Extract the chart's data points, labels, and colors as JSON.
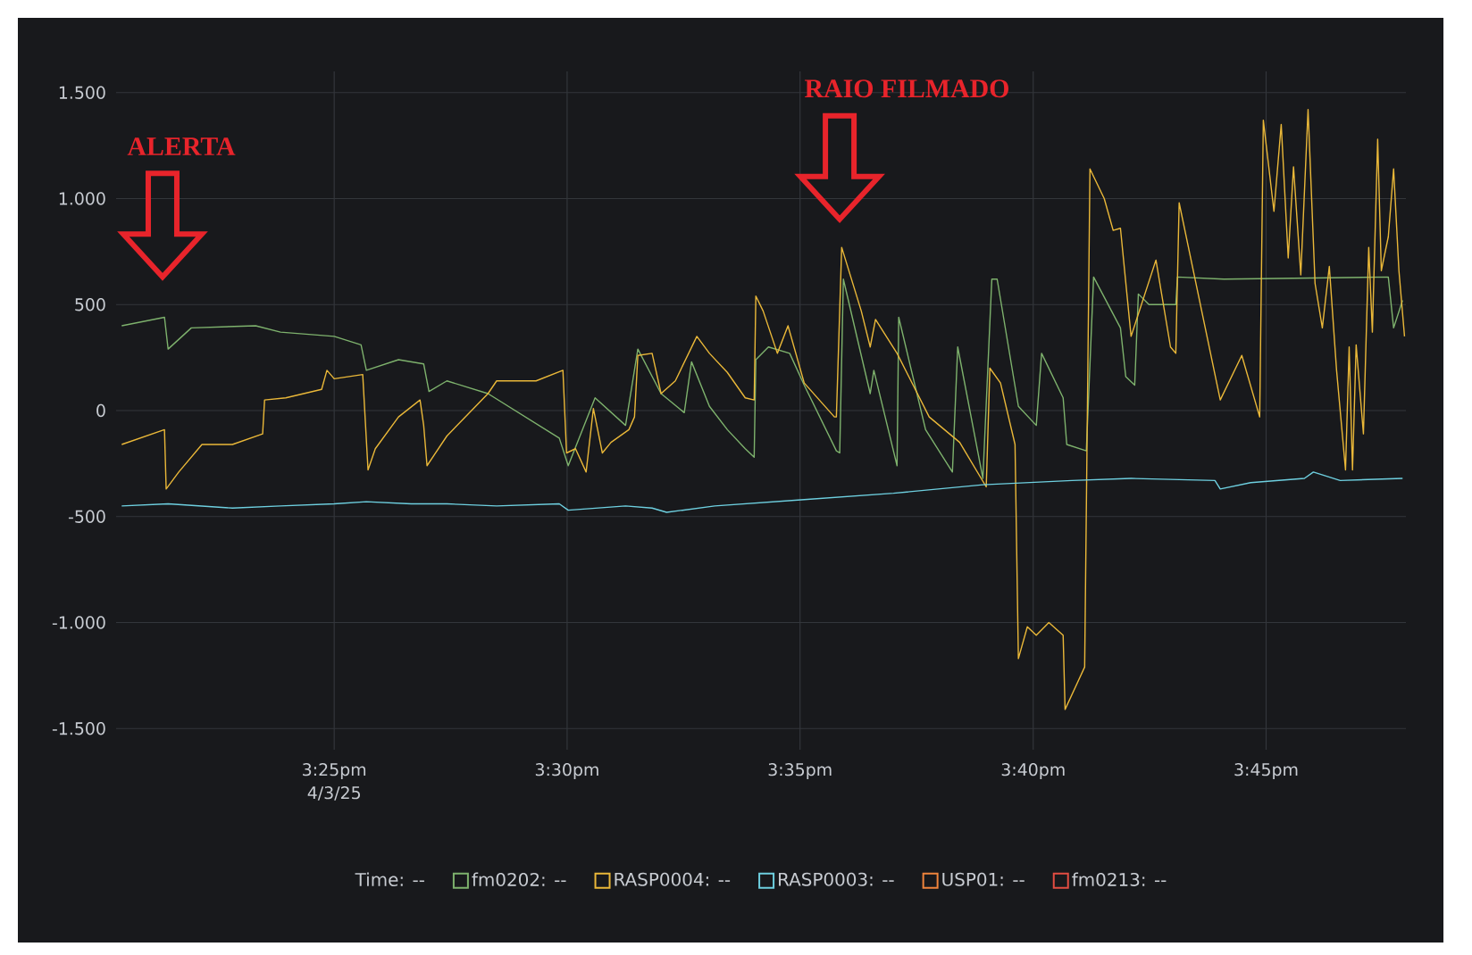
{
  "chart_data": {
    "type": "line",
    "annotations": [
      "ALERTA",
      "RAIO FILMADO"
    ],
    "xlabel": "4/3/25",
    "legend_title": "Time: --",
    "xlim": [
      15.3387,
      15.8
    ],
    "ylim": [
      -1600,
      1600
    ],
    "xticks": [
      {
        "value": 15.4167,
        "label": "3:25pm"
      },
      {
        "value": 15.5,
        "label": "3:30pm"
      },
      {
        "value": 15.5833,
        "label": "3:35pm"
      },
      {
        "value": 15.6667,
        "label": "3:40pm"
      },
      {
        "value": 15.75,
        "label": "3:45pm"
      }
    ],
    "yticks": [
      {
        "value": -1500,
        "label": "-1.500"
      },
      {
        "value": -1000,
        "label": "-1.000"
      },
      -500,
      0,
      500,
      {
        "value": 1000,
        "label": "1.000"
      },
      {
        "value": 1500,
        "label": "1.500"
      }
    ],
    "grid": true,
    "legend": "bottom",
    "series": [
      {
        "name": "fm0202: --",
        "color": "#7eb26d",
        "x": [
          15.3407,
          15.356,
          15.3573,
          15.3656,
          15.3886,
          15.3975,
          15.4167,
          15.4263,
          15.4282,
          15.4397,
          15.4487,
          15.4506,
          15.457,
          15.4717,
          15.4972,
          15.5004,
          15.51,
          15.5209,
          15.5253,
          15.5336,
          15.5419,
          15.5445,
          15.5509,
          15.5573,
          15.5637,
          15.5669,
          15.5675,
          15.572,
          15.5796,
          15.5848,
          15.5963,
          15.5975,
          15.5988,
          15.6084,
          15.6097,
          15.618,
          15.6186,
          15.6282,
          15.6378,
          15.6397,
          15.6487,
          15.6519,
          15.6538,
          15.6614,
          15.6678,
          15.6697,
          15.6774,
          15.6787,
          15.6857,
          15.6883,
          15.6979,
          15.6998,
          15.703,
          15.7043,
          15.7081,
          15.7177,
          15.7183,
          15.7349,
          15.7937,
          15.7956,
          15.7988
        ],
        "values": [
          400,
          440,
          290,
          390,
          400,
          370,
          350,
          310,
          190,
          240,
          220,
          90,
          140,
          80,
          -130,
          -260,
          60,
          -70,
          290,
          80,
          -10,
          230,
          20,
          -90,
          -180,
          -220,
          240,
          300,
          270,
          120,
          -190,
          -200,
          620,
          80,
          190,
          -260,
          440,
          -90,
          -290,
          300,
          -320,
          620,
          620,
          20,
          -70,
          270,
          60,
          -160,
          -190,
          630,
          390,
          160,
          120,
          550,
          500,
          500,
          630,
          620,
          630,
          390,
          520
        ]
      },
      {
        "name": "RASP0004: --",
        "color": "#eab839",
        "x": [
          15.3407,
          15.356,
          15.3566,
          15.3611,
          15.3694,
          15.3803,
          15.3911,
          15.3918,
          15.3994,
          15.4122,
          15.4141,
          15.4167,
          15.4269,
          15.4288,
          15.4314,
          15.4397,
          15.4474,
          15.4487,
          15.4499,
          15.457,
          15.4717,
          15.4748,
          15.4889,
          15.4985,
          15.4998,
          15.503,
          15.5068,
          15.5094,
          15.5126,
          15.5157,
          15.5221,
          15.5241,
          15.5253,
          15.5304,
          15.5336,
          15.5387,
          15.5464,
          15.5509,
          15.5573,
          15.5637,
          15.5669,
          15.5675,
          15.5701,
          15.5752,
          15.579,
          15.5848,
          15.5956,
          15.5963,
          15.5982,
          15.6052,
          15.6084,
          15.6103,
          15.618,
          15.6295,
          15.6404,
          15.6499,
          15.6512,
          15.655,
          15.6602,
          15.6614,
          15.6646,
          15.6678,
          15.6723,
          15.6774,
          15.6781,
          15.6851,
          15.687,
          15.6921,
          15.6953,
          15.6979,
          15.7017,
          15.7106,
          15.7158,
          15.7177,
          15.7189,
          15.7336,
          15.7413,
          15.7477,
          15.749,
          15.7528,
          15.7554,
          15.7579,
          15.7598,
          15.7624,
          15.765,
          15.7675,
          15.7701,
          15.7726,
          15.7752,
          15.7784,
          15.7797,
          15.7809,
          15.7822,
          15.7848,
          15.7867,
          15.788,
          15.7899,
          15.7912,
          15.7937,
          15.7956,
          15.7975,
          15.7995
        ],
        "values": [
          -160,
          -90,
          -370,
          -290,
          -160,
          -160,
          -110,
          50,
          60,
          100,
          190,
          150,
          170,
          -280,
          -180,
          -30,
          50,
          -70,
          -260,
          -120,
          80,
          140,
          140,
          190,
          -200,
          -180,
          -290,
          10,
          -200,
          -150,
          -90,
          -30,
          260,
          270,
          80,
          140,
          350,
          270,
          180,
          60,
          50,
          540,
          470,
          270,
          400,
          130,
          -30,
          -30,
          770,
          470,
          300,
          430,
          270,
          -30,
          -150,
          -360,
          200,
          130,
          -160,
          -1170,
          -1020,
          -1060,
          -1000,
          -1060,
          -1410,
          -1210,
          1140,
          1000,
          850,
          860,
          350,
          710,
          300,
          270,
          980,
          50,
          260,
          -30,
          1370,
          940,
          1350,
          720,
          1150,
          640,
          1420,
          600,
          390,
          680,
          190,
          -280,
          300,
          -280,
          310,
          -110,
          770,
          370,
          1280,
          660,
          820,
          1140,
          660,
          350
        ]
      },
      {
        "name": "RASP0003: --",
        "color": "#6ed0e0",
        "x": [
          15.3407,
          15.3573,
          15.3803,
          15.3975,
          15.4167,
          15.4282,
          15.4442,
          15.457,
          15.4748,
          15.4972,
          15.5004,
          15.5209,
          15.5304,
          15.5356,
          15.5528,
          15.5848,
          15.6167,
          15.6487,
          15.6806,
          15.7017,
          15.7317,
          15.7336,
          15.7445,
          15.7637,
          15.7669,
          15.7765,
          15.7988
        ],
        "values": [
          -450,
          -440,
          -460,
          -450,
          -440,
          -430,
          -440,
          -440,
          -450,
          -440,
          -470,
          -450,
          -460,
          -480,
          -450,
          -420,
          -390,
          -350,
          -330,
          -320,
          -330,
          -370,
          -340,
          -320,
          -290,
          -330,
          -320
        ]
      },
      {
        "name": "USP01: --",
        "color": "#ef843c"
      },
      {
        "name": "fm0213: --",
        "color": "#e24d42"
      }
    ]
  }
}
